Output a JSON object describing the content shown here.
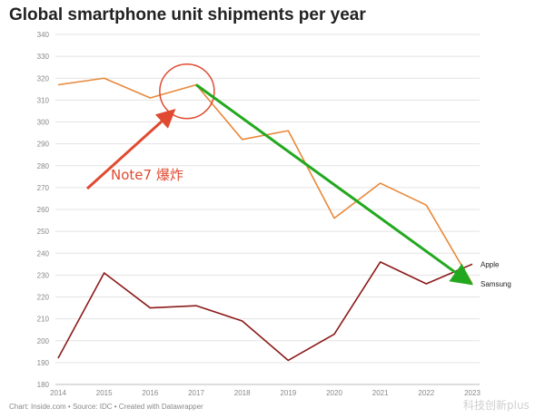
{
  "chart_data": {
    "type": "line",
    "title": "Global smartphone unit shipments per year",
    "xlabel": "",
    "ylabel": "",
    "x": [
      2014,
      2015,
      2016,
      2017,
      2018,
      2019,
      2020,
      2021,
      2022,
      2023
    ],
    "ylim": [
      180,
      340
    ],
    "yticks": [
      180,
      190,
      200,
      210,
      220,
      230,
      240,
      250,
      260,
      270,
      280,
      290,
      300,
      310,
      320,
      330,
      340
    ],
    "grid": true,
    "legend": "inline-right",
    "series": [
      {
        "name": "Samsung",
        "color": "#e8883a",
        "values": [
          317,
          320,
          311,
          317,
          292,
          296,
          256,
          272,
          262,
          226
        ]
      },
      {
        "name": "Apple",
        "color": "#8b1a1a",
        "values": [
          192,
          231,
          215,
          216,
          209,
          191,
          203,
          236,
          226,
          235
        ]
      }
    ],
    "annotations": [
      {
        "text": "Note7 爆炸",
        "color": "#e04a30",
        "x": 2016.7,
        "y": 312
      },
      {
        "text": "",
        "type": "arrow",
        "color": "#22a81e",
        "from": [
          2017,
          317
        ],
        "to": [
          2023,
          226
        ]
      }
    ]
  },
  "footer": {
    "credit": "Chart: Inside.com • Source: IDC • Created with Datawrapper"
  },
  "watermark": {
    "text": "科技创新plus"
  },
  "colors": {
    "grid": "#e3e3e3",
    "tick": "#888888",
    "note_red": "#e04a30",
    "trend_green": "#22a81e"
  }
}
